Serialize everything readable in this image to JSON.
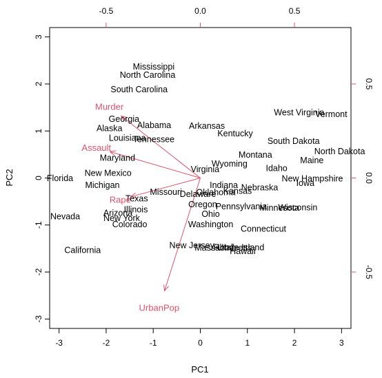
{
  "chart_data": {
    "type": "scatter",
    "subtype": "biplot",
    "title": "",
    "xlabel": "PC1",
    "ylabel": "PC2",
    "xlim": [
      -3.2,
      3.2
    ],
    "ylim": [
      -3.2,
      3.2
    ],
    "x_ticks": [
      -3,
      -2,
      -1,
      0,
      1,
      2,
      3
    ],
    "y_ticks": [
      -3,
      -2,
      -1,
      0,
      1,
      2,
      3
    ],
    "loading_ticks": [
      -0.5,
      0.0,
      0.5
    ],
    "loading_tick_labels": [
      "-0.5",
      "0.0",
      "0.5"
    ],
    "loading_scale": 4.0,
    "grid": false,
    "point_color": "#000000",
    "arrow_color": "#DF536B",
    "points": [
      {
        "label": "Alabama",
        "x": -0.98,
        "y": 1.13
      },
      {
        "label": "Alaska",
        "x": -1.93,
        "y": 1.06
      },
      {
        "label": "Arizona",
        "x": -1.75,
        "y": -0.74
      },
      {
        "label": "Arkansas",
        "x": 0.14,
        "y": 1.11
      },
      {
        "label": "California",
        "x": -2.5,
        "y": -1.53
      },
      {
        "label": "Colorado",
        "x": -1.5,
        "y": -0.98
      },
      {
        "label": "Connecticut",
        "x": 1.34,
        "y": -1.08
      },
      {
        "label": "Delaware",
        "x": -0.05,
        "y": -0.34
      },
      {
        "label": "Florida",
        "x": -2.98,
        "y": 0.0
      },
      {
        "label": "Georgia",
        "x": -1.62,
        "y": 1.26
      },
      {
        "label": "Hawaii",
        "x": 0.9,
        "y": -1.55
      },
      {
        "label": "Idaho",
        "x": 1.62,
        "y": 0.21
      },
      {
        "label": "Illinois",
        "x": -1.37,
        "y": -0.67
      },
      {
        "label": "Indiana",
        "x": 0.5,
        "y": -0.15
      },
      {
        "label": "Iowa",
        "x": 2.23,
        "y": -0.1
      },
      {
        "label": "Kansas",
        "x": 0.79,
        "y": -0.27
      },
      {
        "label": "Kentucky",
        "x": 0.74,
        "y": 0.95
      },
      {
        "label": "Louisiana",
        "x": -1.55,
        "y": 0.86
      },
      {
        "label": "Maine",
        "x": 2.37,
        "y": 0.38
      },
      {
        "label": "Maryland",
        "x": -1.76,
        "y": 0.43
      },
      {
        "label": "Massachusetts",
        "x": 0.49,
        "y": -1.48
      },
      {
        "label": "Michigan",
        "x": -2.08,
        "y": -0.15
      },
      {
        "label": "Minnesota",
        "x": 1.68,
        "y": -0.63
      },
      {
        "label": "Mississippi",
        "x": -0.99,
        "y": 2.37
      },
      {
        "label": "Missouri",
        "x": -0.73,
        "y": -0.29
      },
      {
        "label": "Montana",
        "x": 1.17,
        "y": 0.5
      },
      {
        "label": "Nebraska",
        "x": 1.26,
        "y": -0.2
      },
      {
        "label": "Nevada",
        "x": -2.87,
        "y": -0.81
      },
      {
        "label": "New Hampshire",
        "x": 2.38,
        "y": -0.01
      },
      {
        "label": "New Jersey",
        "x": -0.18,
        "y": -1.43
      },
      {
        "label": "New Mexico",
        "x": -1.96,
        "y": 0.11
      },
      {
        "label": "New York",
        "x": -1.67,
        "y": -0.85
      },
      {
        "label": "North Carolina",
        "x": -1.12,
        "y": 2.2
      },
      {
        "label": "North Dakota",
        "x": 2.96,
        "y": 0.57
      },
      {
        "label": "Ohio",
        "x": 0.22,
        "y": -0.76
      },
      {
        "label": "Oklahoma",
        "x": 0.33,
        "y": -0.3
      },
      {
        "label": "Oregon",
        "x": 0.05,
        "y": -0.56
      },
      {
        "label": "Pennsylvania",
        "x": 0.87,
        "y": -0.6
      },
      {
        "label": "Rhode Island",
        "x": 0.82,
        "y": -1.47
      },
      {
        "label": "South Carolina",
        "x": -1.3,
        "y": 1.89
      },
      {
        "label": "South Dakota",
        "x": 1.98,
        "y": 0.79
      },
      {
        "label": "Tennessee",
        "x": -0.99,
        "y": 0.83
      },
      {
        "label": "Texas",
        "x": -1.35,
        "y": -0.43
      },
      {
        "label": "Utah",
        "x": 0.56,
        "y": -1.47
      },
      {
        "label": "Vermont",
        "x": 2.78,
        "y": 1.36
      },
      {
        "label": "Virginia",
        "x": 0.1,
        "y": 0.19
      },
      {
        "label": "Washington",
        "x": 0.22,
        "y": -0.98
      },
      {
        "label": "West Virginia",
        "x": 2.1,
        "y": 1.4
      },
      {
        "label": "Wisconsin",
        "x": 2.07,
        "y": -0.62
      },
      {
        "label": "Wyoming",
        "x": 0.62,
        "y": 0.31
      }
    ],
    "loadings": [
      {
        "name": "Murder",
        "x": -0.42,
        "y": 0.33
      },
      {
        "name": "Assault",
        "x": -0.48,
        "y": 0.14
      },
      {
        "name": "UrbanPop",
        "x": -0.19,
        "y": -0.6
      },
      {
        "name": "Rape",
        "x": -0.37,
        "y": -0.1
      }
    ]
  }
}
